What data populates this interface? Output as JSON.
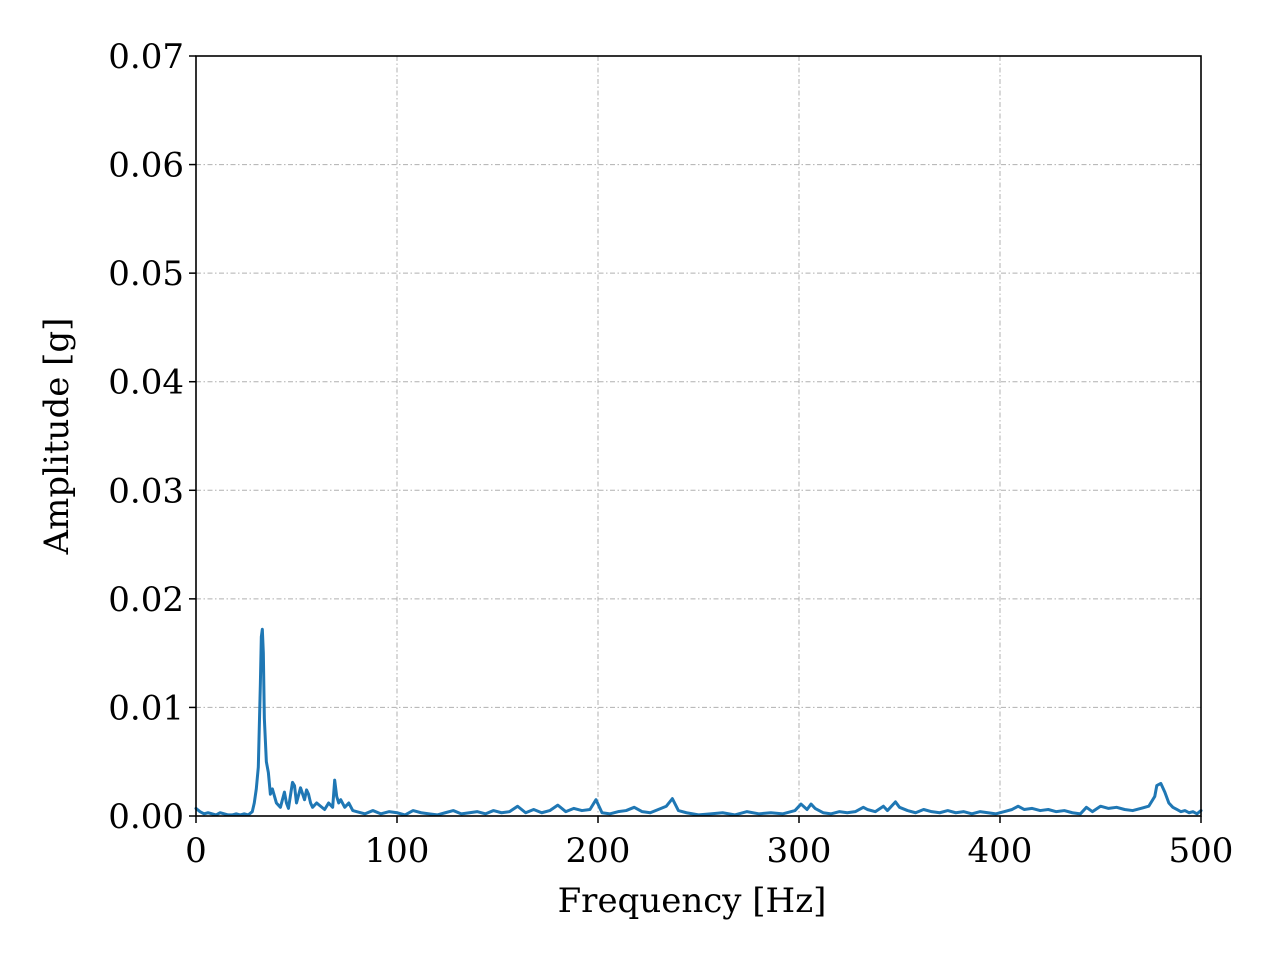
{
  "chart_data": {
    "type": "line",
    "title": "",
    "xlabel": "Frequency [Hz]",
    "ylabel": "Amplitude [g]",
    "xlim": [
      0,
      500
    ],
    "ylim": [
      0,
      0.07
    ],
    "x_ticks": [
      "0",
      "100",
      "200",
      "300",
      "400",
      "500"
    ],
    "y_ticks": [
      "0.00",
      "0.01",
      "0.02",
      "0.03",
      "0.04",
      "0.05",
      "0.06",
      "0.07"
    ],
    "grid": true,
    "legend": "none",
    "colors": {
      "series": "#1f77b4",
      "grid": "#b0b0b0"
    },
    "series": [
      {
        "x": [
          0,
          2,
          4,
          6,
          8,
          10,
          12,
          14,
          16,
          18,
          20,
          22,
          24,
          26,
          28,
          29,
          30,
          31,
          32,
          32.5,
          33,
          33.5,
          34,
          35,
          36,
          37,
          38,
          40,
          42,
          44,
          45,
          46,
          48,
          49,
          50,
          52,
          54,
          55,
          56,
          57,
          58,
          60,
          62,
          64,
          66,
          68,
          69,
          70,
          71,
          72,
          74,
          76,
          78,
          80,
          84,
          88,
          92,
          96,
          100,
          104,
          108,
          112,
          116,
          120,
          124,
          128,
          132,
          136,
          140,
          144,
          148,
          152,
          156,
          160,
          164,
          168,
          172,
          176,
          180,
          184,
          188,
          192,
          196,
          199,
          202,
          206,
          210,
          214,
          218,
          222,
          226,
          230,
          234,
          237,
          240,
          244,
          250,
          256,
          262,
          268,
          274,
          280,
          286,
          292,
          298,
          301,
          304,
          306,
          308,
          312,
          316,
          320,
          324,
          328,
          332,
          334,
          338,
          342,
          344,
          348,
          350,
          354,
          358,
          362,
          366,
          370,
          374,
          378,
          382,
          386,
          390,
          394,
          398,
          402,
          406,
          409,
          412,
          416,
          420,
          424,
          428,
          432,
          436,
          440,
          443,
          446,
          450,
          454,
          458,
          462,
          466,
          470,
          474,
          477,
          478,
          480,
          482,
          484,
          486,
          488,
          490,
          492,
          494,
          496,
          498,
          500
        ],
        "y": [
          0.0007,
          0.0004,
          0.0002,
          0.0003,
          0.0002,
          0.0001,
          0.0003,
          0.0002,
          0.0001,
          0.0001,
          0.0002,
          0.0001,
          0.0002,
          0.0001,
          0.0004,
          0.0012,
          0.0025,
          0.0045,
          0.012,
          0.0165,
          0.0172,
          0.015,
          0.009,
          0.005,
          0.004,
          0.002,
          0.0025,
          0.0012,
          0.0008,
          0.0022,
          0.0012,
          0.0007,
          0.0031,
          0.0028,
          0.0012,
          0.0026,
          0.0015,
          0.0024,
          0.002,
          0.0012,
          0.0008,
          0.0012,
          0.0009,
          0.0006,
          0.0012,
          0.0008,
          0.0033,
          0.0018,
          0.0012,
          0.0015,
          0.0008,
          0.0012,
          0.0005,
          0.0004,
          0.0002,
          0.0005,
          0.0002,
          0.0004,
          0.0003,
          0.0001,
          0.0005,
          0.0003,
          0.0002,
          0.0001,
          0.0003,
          0.0005,
          0.0002,
          0.0003,
          0.0004,
          0.0002,
          0.0005,
          0.0003,
          0.0004,
          0.0009,
          0.0003,
          0.0006,
          0.0003,
          0.0005,
          0.001,
          0.0004,
          0.0007,
          0.0005,
          0.0006,
          0.0015,
          0.0003,
          0.0002,
          0.0004,
          0.0005,
          0.0008,
          0.0004,
          0.0003,
          0.0006,
          0.0009,
          0.0016,
          0.0005,
          0.0003,
          0.0001,
          0.0002,
          0.0003,
          0.0001,
          0.0004,
          0.0002,
          0.0003,
          0.0002,
          0.0005,
          0.0011,
          0.0006,
          0.0011,
          0.0007,
          0.0003,
          0.0002,
          0.0004,
          0.0003,
          0.0004,
          0.0008,
          0.0006,
          0.0004,
          0.0009,
          0.0005,
          0.0013,
          0.0008,
          0.0005,
          0.0003,
          0.0006,
          0.0004,
          0.0003,
          0.0005,
          0.0003,
          0.0004,
          0.0002,
          0.0004,
          0.0003,
          0.0002,
          0.0004,
          0.0006,
          0.0009,
          0.0006,
          0.0007,
          0.0005,
          0.0006,
          0.0004,
          0.0005,
          0.0003,
          0.0002,
          0.0008,
          0.0004,
          0.0009,
          0.0007,
          0.0008,
          0.0006,
          0.0005,
          0.0007,
          0.0009,
          0.0018,
          0.0028,
          0.003,
          0.0022,
          0.0012,
          0.0008,
          0.0006,
          0.0004,
          0.0005,
          0.0003,
          0.0004,
          0.0002,
          0.0005
        ]
      }
    ]
  }
}
